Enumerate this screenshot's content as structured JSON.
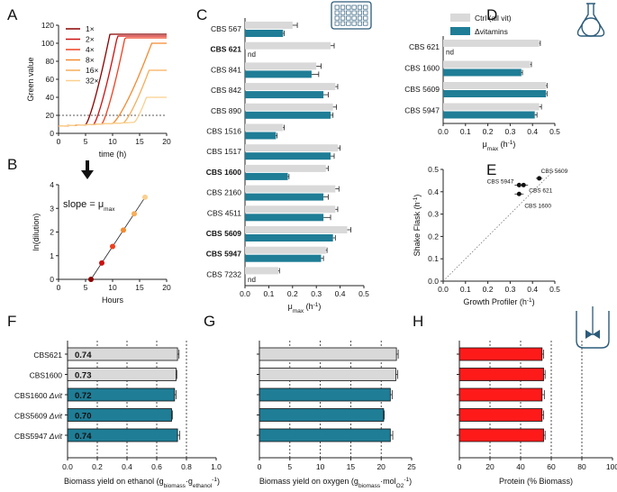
{
  "colors": {
    "ctrl": "#d9d9d9",
    "dvit": "#1f7d96",
    "protein": "#ff1a1a",
    "icon": "#2c5b7a",
    "axis": "#222222"
  },
  "chart_data": [
    {
      "panel": "A",
      "type": "line",
      "xlabel": "time (h)",
      "ylabel": "Green value",
      "xlim": [
        0,
        20
      ],
      "ylim": [
        0,
        120
      ],
      "xticks": [
        0,
        5,
        10,
        15,
        20
      ],
      "yticks": [
        0,
        20,
        40,
        60,
        80,
        100,
        120
      ],
      "threshold": 20,
      "legend_position": "top-left",
      "series": [
        {
          "name": "1×",
          "color": "#8b0000",
          "onset": 5.0,
          "plateau": 110
        },
        {
          "name": "2×",
          "color": "#cc1010",
          "onset": 6.5,
          "plateau": 108
        },
        {
          "name": "4×",
          "color": "#ee4020",
          "onset": 8.0,
          "plateau": 106
        },
        {
          "name": "8×",
          "color": "#f48a30",
          "onset": 10.0,
          "plateau": 100
        },
        {
          "name": "16×",
          "color": "#f6ad5a",
          "onset": 12.0,
          "plateau": 70
        },
        {
          "name": "32×",
          "color": "#f9d08e",
          "onset": 14.0,
          "plateau": 40
        }
      ]
    },
    {
      "panel": "B",
      "type": "scatter",
      "xlabel": "Hours",
      "ylabel": "ln(dilution)",
      "xlim": [
        0,
        20
      ],
      "ylim": [
        0,
        4
      ],
      "xticks": [
        0,
        5,
        10,
        15,
        20
      ],
      "yticks": [
        0,
        1,
        2,
        3,
        4
      ],
      "annotation": "slope = μ",
      "annotation_sub": "max",
      "x": [
        6.0,
        8.0,
        10.0,
        12.0,
        14.0,
        16.0
      ],
      "y": [
        0.0,
        0.69,
        1.39,
        2.08,
        2.77,
        3.47
      ],
      "colors": [
        "#8b0000",
        "#cc1010",
        "#ee4020",
        "#f48a30",
        "#f6ad5a",
        "#f9d08e"
      ]
    },
    {
      "panel": "C",
      "type": "bar",
      "orientation": "horizontal",
      "xlabel": "μ",
      "xlabel_sub": "max",
      "xlabel_unit": " (h",
      "xlabel_exp": "-1",
      "xlabel_close": ")",
      "xlim": [
        0,
        0.5
      ],
      "xticks": [
        "0.0",
        "0.1",
        "0.2",
        "0.3",
        "0.4",
        "0.5"
      ],
      "nd_label": "nd",
      "categories": [
        "CBS 567",
        "CBS 621",
        "CBS 841",
        "CBS 842",
        "CBS 890",
        "CBS 1516",
        "CBS 1517",
        "CBS 1600",
        "CBS 2160",
        "CBS 4511",
        "CBS 5609",
        "CBS 5947",
        "CBS 7232"
      ],
      "bold": [
        false,
        true,
        false,
        false,
        false,
        false,
        false,
        true,
        false,
        false,
        true,
        true,
        false
      ],
      "series": [
        {
          "name": "Ctrl (all vit)",
          "values": [
            0.2,
            0.36,
            0.3,
            0.38,
            0.37,
            0.16,
            0.39,
            0.34,
            0.38,
            0.38,
            0.43,
            0.34,
            0.14
          ],
          "errors": [
            0.02,
            0.015,
            0.02,
            0.01,
            0.015,
            0.005,
            0.01,
            0.01,
            0.015,
            0.01,
            0.015,
            0.005,
            0.005
          ]
        },
        {
          "name": "Δvitamins",
          "values": [
            0.16,
            null,
            0.28,
            0.33,
            0.36,
            0.13,
            0.36,
            0.18,
            0.33,
            0.33,
            0.37,
            0.32,
            null
          ],
          "errors": [
            0.005,
            null,
            0.03,
            0.02,
            0.01,
            0.005,
            0.015,
            0.005,
            0.02,
            0.03,
            0.01,
            0.01,
            null
          ]
        }
      ]
    },
    {
      "panel": "D",
      "type": "bar",
      "orientation": "horizontal",
      "xlabel": "μ",
      "xlabel_sub": "max",
      "xlabel_unit": " (h",
      "xlabel_exp": "-1",
      "xlabel_close": ")",
      "xlim": [
        0,
        0.5
      ],
      "xticks": [
        "0.0",
        "0.1",
        "0.2",
        "0.3",
        "0.4",
        "0.5"
      ],
      "nd_label": "nd",
      "legend": [
        "Ctrl (all vit)",
        "Δvitamins"
      ],
      "categories": [
        "CBS 621",
        "CBS 1600",
        "CBS 5609",
        "CBS 5947"
      ],
      "series": [
        {
          "name": "Ctrl (all vit)",
          "values": [
            0.43,
            0.39,
            0.46,
            0.43
          ],
          "errors": [
            0.005,
            0.005,
            0.005,
            0.01
          ]
        },
        {
          "name": "Δvitamins",
          "values": [
            null,
            0.35,
            0.46,
            0.41
          ],
          "errors": [
            null,
            0.005,
            0.005,
            0.01
          ]
        }
      ]
    },
    {
      "panel": "E",
      "type": "scatter",
      "xlabel": "Growth Profiler (h",
      "xlabel_exp": "-1",
      "xlabel_close": ")",
      "ylabel": "Shake Flask (h",
      "ylabel_exp": "-1",
      "ylabel_close": ")",
      "xlim": [
        0,
        0.5
      ],
      "ylim": [
        0,
        0.5
      ],
      "xticks": [
        "0.0",
        "0.1",
        "0.2",
        "0.3",
        "0.4",
        "0.5"
      ],
      "yticks": [
        "0.0",
        "0.1",
        "0.2",
        "0.3",
        "0.4",
        "0.5"
      ],
      "points": [
        {
          "label": "CBS 5609",
          "x": 0.43,
          "y": 0.46,
          "xerr": 0.015,
          "yerr": 0.005
        },
        {
          "label": "CBS 5947",
          "x": 0.34,
          "y": 0.43,
          "xerr": 0.02,
          "yerr": 0.01
        },
        {
          "label": "CBS 621",
          "x": 0.36,
          "y": 0.43,
          "xerr": 0.02,
          "yerr": 0.005
        },
        {
          "label": "CBS 1600",
          "x": 0.34,
          "y": 0.39,
          "xerr": 0.02,
          "yerr": 0.005
        }
      ]
    },
    {
      "panel": "F",
      "type": "bar",
      "orientation": "horizontal",
      "xlabel": "Biomass yield on ethanol (g",
      "xlabel_sub1": "biomass",
      "xlabel_mid": "·g",
      "xlabel_sub2": "ethanol",
      "xlabel_close": ")",
      "xlabel_exp": "-1",
      "xlim": [
        0,
        1.0
      ],
      "xticks": [
        "0.0",
        "0.2",
        "0.4",
        "0.6",
        "0.8",
        "1.0"
      ],
      "gridlines": [
        0.2,
        0.4,
        0.6,
        0.8
      ],
      "categories": [
        "CBS621",
        "CBS1600",
        "CBS1600 ",
        "CBS5609 ",
        "CBS5947 "
      ],
      "dvit_suffix": "Δvit",
      "dvit_flags": [
        false,
        false,
        true,
        true,
        true
      ],
      "values": [
        0.74,
        0.73,
        0.72,
        0.7,
        0.74
      ],
      "value_labels": [
        "0.74",
        "0.73",
        "0.72",
        "0.70",
        "0.74"
      ],
      "errors": [
        0.01,
        0.005,
        0.01,
        0.005,
        0.015
      ]
    },
    {
      "panel": "G",
      "type": "bar",
      "orientation": "horizontal",
      "xlabel": "Biomass yield on oxygen (g",
      "xlabel_sub1": "biomass",
      "xlabel_mid": "·mol",
      "xlabel_sub2": "O2",
      "xlabel_close": ")",
      "xlabel_exp": "-1",
      "xlim": [
        0,
        25
      ],
      "xticks": [
        "0",
        "5",
        "10",
        "15",
        "20",
        "25"
      ],
      "gridlines": [
        5,
        10,
        15,
        20
      ],
      "values": [
        22.5,
        22.4,
        21.5,
        20.4,
        21.5
      ],
      "errors": [
        0.3,
        0.3,
        0.3,
        0.1,
        0.4
      ]
    },
    {
      "panel": "H",
      "type": "bar",
      "orientation": "horizontal",
      "xlabel": "Protein (% Biomass)",
      "xlim": [
        0,
        100
      ],
      "xticks": [
        "0",
        "20",
        "40",
        "60",
        "80",
        "100"
      ],
      "gridlines": [
        20,
        40,
        60,
        80
      ],
      "values": [
        54,
        55,
        54,
        54,
        55
      ],
      "errors": [
        1,
        1,
        1.5,
        1,
        1
      ]
    }
  ],
  "panel_labels": [
    "A",
    "B",
    "C",
    "D",
    "E",
    "F",
    "G",
    "H"
  ]
}
